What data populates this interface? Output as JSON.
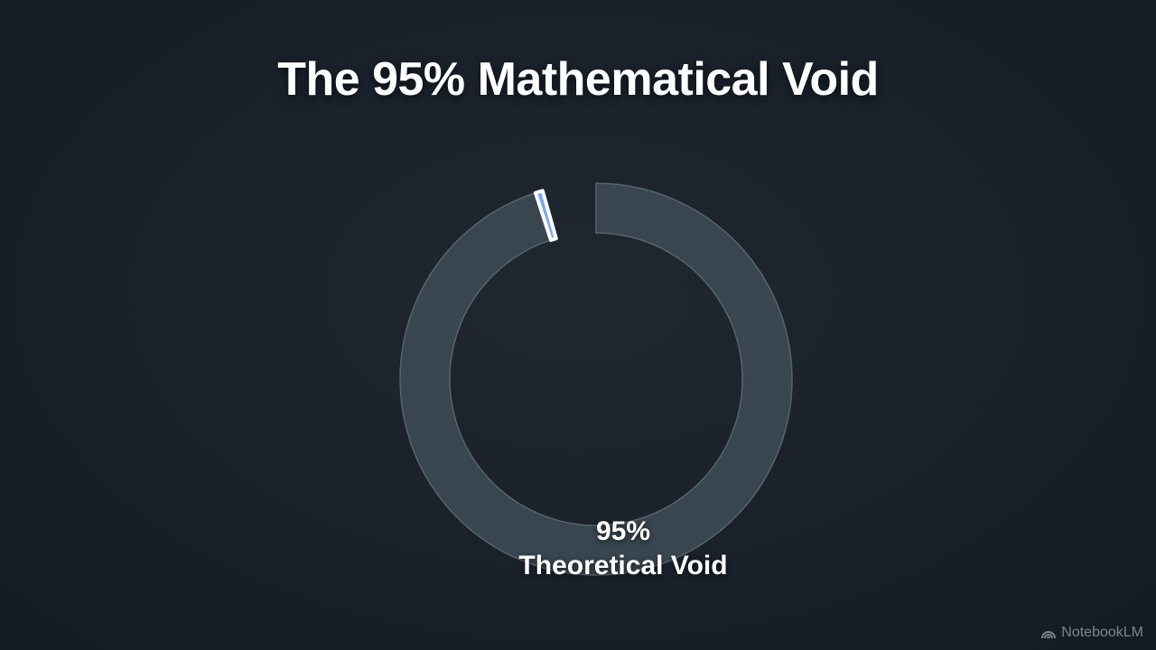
{
  "title": "The 95% Mathematical Void",
  "chart_data": {
    "type": "pie",
    "style": "donut",
    "segments": [
      {
        "label": "Theoretical Void",
        "value": 95,
        "color": "#3d4a53"
      },
      {
        "label": "",
        "value": 0.6,
        "color": "#7aa9ea"
      },
      {
        "label": "",
        "value": 4.4,
        "color": "transparent"
      }
    ],
    "center_label": {
      "value": "95%",
      "text": "Theoretical Void"
    }
  },
  "branding": {
    "logo_text": "NotebookLM"
  }
}
